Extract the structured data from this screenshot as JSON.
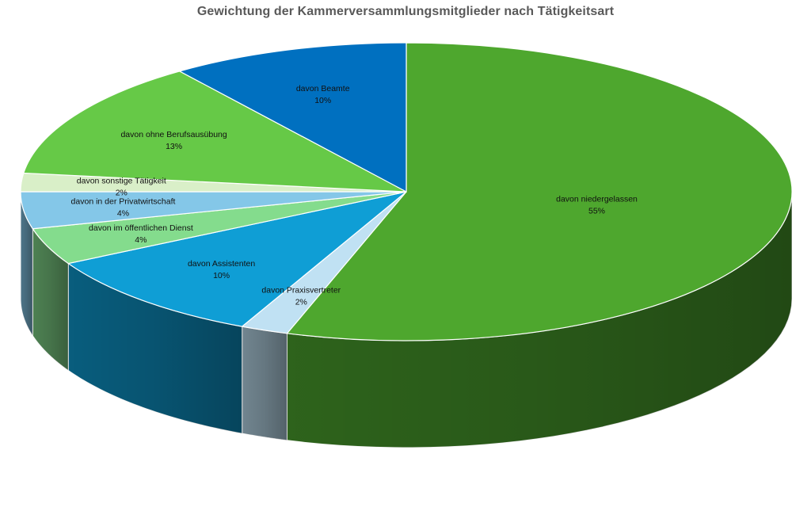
{
  "chart_data": {
    "type": "pie",
    "title": "Gewichtung der Kammerversammlungsmitglieder nach Tätigkeitsart",
    "slices": [
      {
        "label": "davon niedergelassen",
        "value": 55,
        "value_label": "55%",
        "color": "#4ea72e"
      },
      {
        "label": "davon Praxisvertreter",
        "value": 2,
        "value_label": "2%",
        "color": "#c0e1f3"
      },
      {
        "label": "davon Assistenten",
        "value": 10,
        "value_label": "10%",
        "color": "#0f9ed5"
      },
      {
        "label": "davon im öffentlichen Dienst",
        "value": 4,
        "value_label": "4%",
        "color": "#84dc8d"
      },
      {
        "label": "davon in der Privatwirtschaft",
        "value": 4,
        "value_label": "4%",
        "color": "#84c7e8"
      },
      {
        "label": "davon sonstige Tätigkeit",
        "value": 2,
        "value_label": "2%",
        "color": "#d9efc8"
      },
      {
        "label": "davon ohne Berufsausübung",
        "value": 13,
        "value_label": "13%",
        "color": "#66c947"
      },
      {
        "label": "davon Beamte",
        "value": 10,
        "value_label": "10%",
        "color": "#0070c0"
      }
    ],
    "style": "3d-pie",
    "legend": "none"
  }
}
